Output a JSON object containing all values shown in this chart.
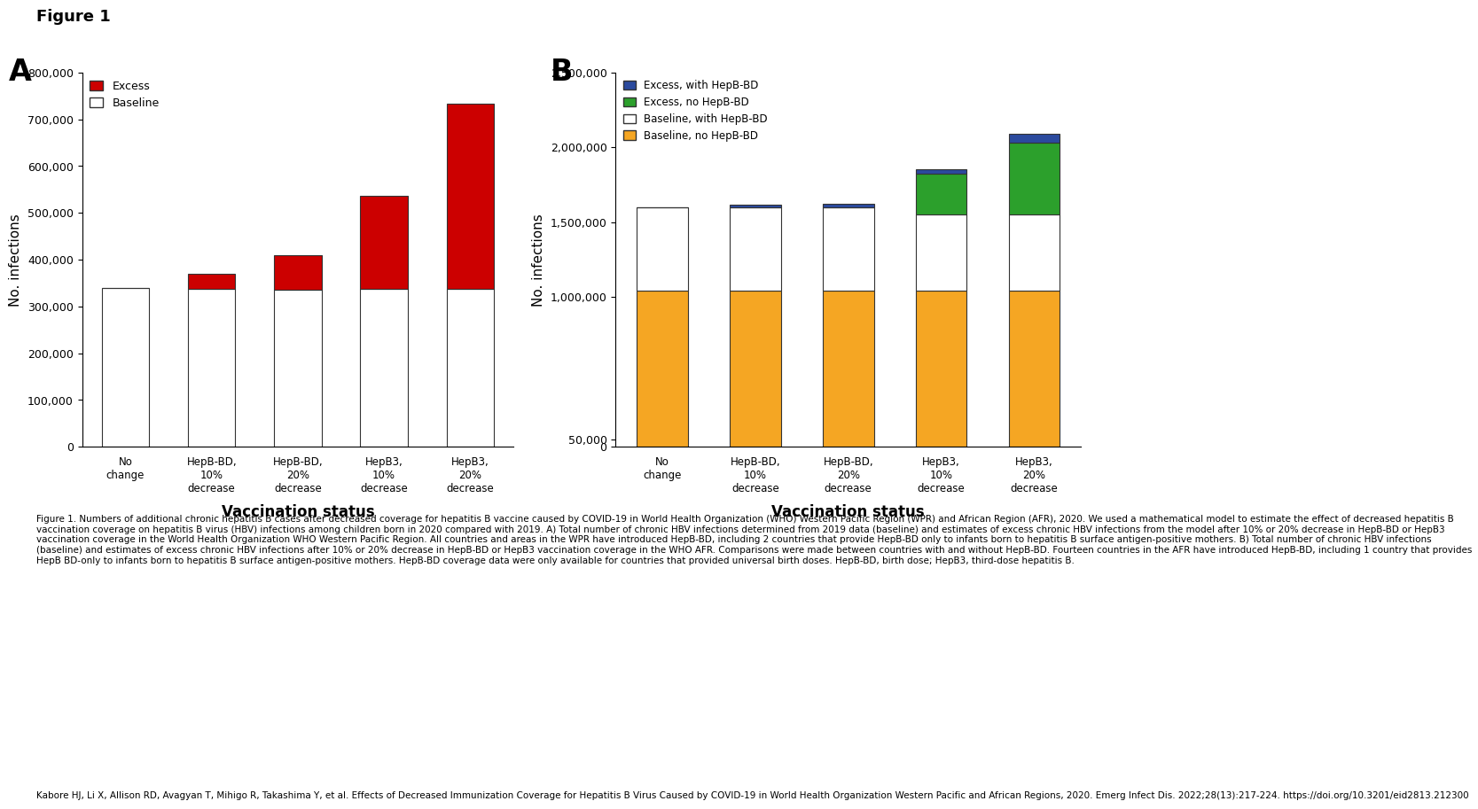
{
  "panel_A": {
    "categories": [
      "No\nchange",
      "HepB-BD,\n10%\ndecrease",
      "HepB-BD,\n20%\ndecrease",
      "HepB3,\n10%\ndecrease",
      "HepB3,\n20%\ndecrease"
    ],
    "baseline": [
      340000,
      337000,
      335000,
      337000,
      337000
    ],
    "excess": [
      0,
      32000,
      75000,
      200000,
      397000
    ],
    "ylabel": "No. infections",
    "xlabel": "Vaccination status",
    "ylim": [
      0,
      800000
    ],
    "yticks": [
      0,
      100000,
      200000,
      300000,
      400000,
      500000,
      600000,
      700000,
      800000
    ],
    "ytick_labels": [
      "0",
      "100,000",
      "200,000",
      "300,000",
      "400,000",
      "500,000",
      "600,000",
      "700,000",
      "800,000"
    ],
    "baseline_color": "#ffffff",
    "excess_color": "#cc0000",
    "bar_edge_color": "#333333",
    "label": "A"
  },
  "panel_B": {
    "categories": [
      "No\nchange",
      "HepB-BD,\n10%\ndecrease",
      "HepB-BD,\n20%\ndecrease",
      "HepB3,\n10%\ndecrease",
      "HepB3,\n20%\ndecrease"
    ],
    "baseline_nobd": [
      1040000,
      1043000,
      1042000,
      1042000,
      1042000
    ],
    "baseline_bd": [
      560000,
      557000,
      560000,
      510000,
      510000
    ],
    "excess_nobd": [
      0,
      0,
      0,
      270000,
      480000
    ],
    "excess_bd": [
      0,
      18000,
      18000,
      30000,
      60000
    ],
    "ylabel": "No. infections",
    "xlabel": "Vaccination status",
    "ylim": [
      0,
      2500000
    ],
    "yticks": [
      0,
      50000,
      1000000,
      1500000,
      2000000,
      2500000
    ],
    "ytick_labels": [
      "0",
      "50,000",
      "1,000,000",
      "1,500,000",
      "2,000,000",
      "2,500,000"
    ],
    "baseline_nobd_color": "#f5a623",
    "baseline_bd_color": "#ffffff",
    "excess_nobd_color": "#2ca02c",
    "excess_bd_color": "#2b4a9e",
    "bar_edge_color": "#333333",
    "label": "B"
  },
  "figure_title": "Figure 1",
  "caption_text": "Figure 1. Numbers of additional chronic hepatitis B cases after decreased coverage for hepatitis B vaccine caused by COVID-19 in World Health Organization (WHO) Western Pacific Region (WPR) and African Region (AFR), 2020. We used a mathematical model to estimate the effect of decreased hepatitis B vaccination coverage on hepatitis B virus (HBV) infections among children born in 2020 compared with 2019. A) Total number of chronic HBV infections determined from 2019 data (baseline) and estimates of excess chronic HBV infections from the model after 10% or 20% decrease in HepB-BD or HepB3 vaccination coverage in the World Health Organization WHO Western Pacific Region. All countries and areas in the WPR have introduced HepB-BD, including 2 countries that provide HepB-BD only to infants born to hepatitis B surface antigen-positive mothers. B) Total number of chronic HBV infections (baseline) and estimates of excess chronic HBV infections after 10% or 20% decrease in HepB-BD or HepB3 vaccination coverage in the WHO AFR. Comparisons were made between countries with and without HepB-BD. Fourteen countries in the AFR have introduced HepB-BD, including 1 country that provides HepB BD-only to infants born to hepatitis B surface antigen-positive mothers. HepB-BD coverage data were only available for countries that provided universal birth doses. HepB-BD, birth dose; HepB3, third-dose hepatitis B.",
  "citation_text": "Kabore HJ, Li X, Allison RD, Avagyan T, Mihigo R, Takashima Y, et al. Effects of Decreased Immunization Coverage for Hepatitis B Virus Caused by COVID-19 in World Health Organization Western Pacific and African Regions, 2020. Emerg Infect Dis. 2022;28(13):217-224. https://doi.org/10.3201/eid2813.212300",
  "background_color": "#ffffff"
}
